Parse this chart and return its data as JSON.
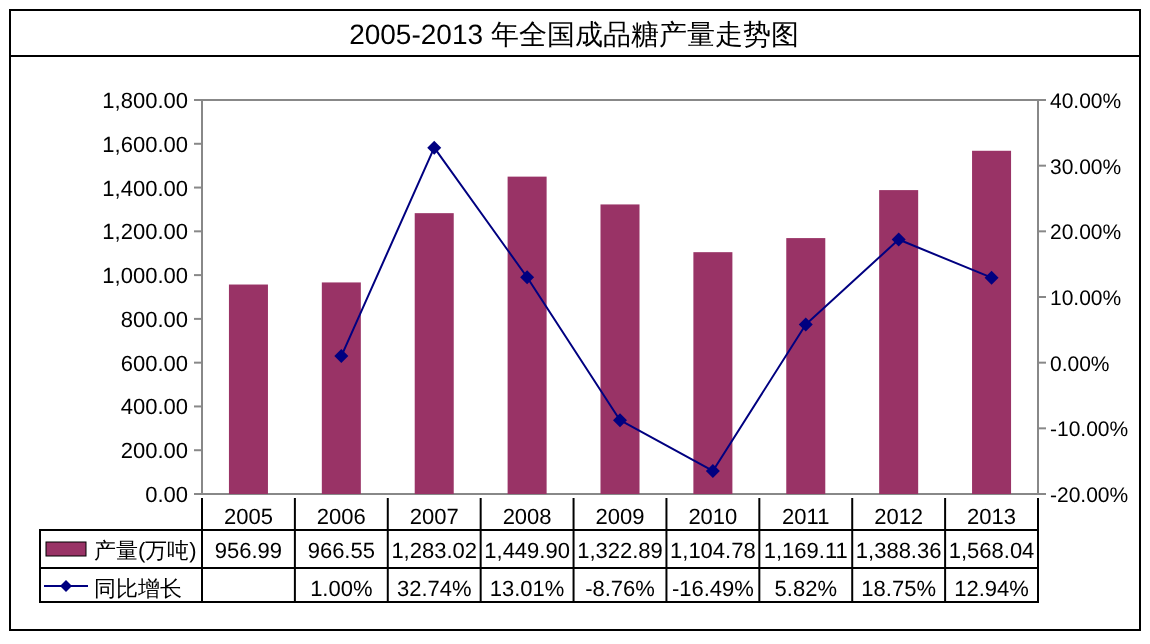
{
  "chart_data": {
    "type": "bar",
    "title": "2005-2013 年全国成品糖产量走势图",
    "categories": [
      "2005",
      "2006",
      "2007",
      "2008",
      "2009",
      "2010",
      "2011",
      "2012",
      "2013"
    ],
    "series": [
      {
        "name": "产量(万吨)",
        "color": "#993366",
        "values": [
          956.99,
          966.55,
          1283.02,
          1449.9,
          1322.89,
          1104.78,
          1169.11,
          1388.36,
          1568.04
        ],
        "value_labels": [
          "956.99",
          "966.55",
          "1,283.02",
          "1,449.90",
          "1,322.89",
          "1,104.78",
          "1,169.11",
          "1,388.36",
          "1,568.04"
        ]
      },
      {
        "name": "同比增长",
        "type": "line",
        "axis": "y2",
        "marker": "diamond",
        "color": "#000080",
        "values": [
          null,
          1.0,
          32.74,
          13.01,
          -8.76,
          -16.49,
          5.82,
          18.75,
          12.94
        ],
        "value_labels": [
          null,
          "1.00%",
          "32.74%",
          "13.01%",
          "-8.76%",
          "-16.49%",
          "5.82%",
          "18.75%",
          "12.94%"
        ]
      }
    ],
    "ylim": [
      0,
      1800
    ],
    "yticks": [
      {
        "value": 0,
        "label": "0.00"
      },
      {
        "value": 200,
        "label": "200.00"
      },
      {
        "value": 400,
        "label": "400.00"
      },
      {
        "value": 600,
        "label": "600.00"
      },
      {
        "value": 800,
        "label": "800.00"
      },
      {
        "value": 1000,
        "label": "1,000.00"
      },
      {
        "value": 1200,
        "label": "1,200.00"
      },
      {
        "value": 1400,
        "label": "1,400.00"
      },
      {
        "value": 1600,
        "label": "1,600.00"
      },
      {
        "value": 1800,
        "label": "1,800.00"
      }
    ],
    "y2lim": [
      -20,
      40
    ],
    "y2ticks": [
      {
        "value": -20,
        "label": "-20.00%"
      },
      {
        "value": -10,
        "label": "-10.00%"
      },
      {
        "value": 0,
        "label": "0.00%"
      },
      {
        "value": 10,
        "label": "10.00%"
      },
      {
        "value": 20,
        "label": "20.00%"
      },
      {
        "value": 30,
        "label": "30.00%"
      },
      {
        "value": 40,
        "label": "40.00%"
      }
    ],
    "legend": "bottom"
  }
}
